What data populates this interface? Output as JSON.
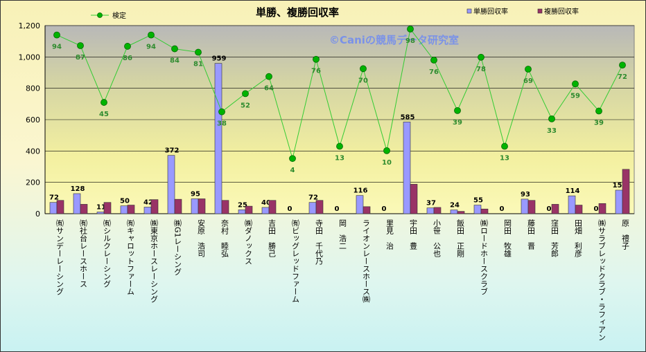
{
  "chart_data": {
    "type": "bar",
    "title": "単勝、複勝回収率",
    "watermark": "©Caniの競馬データ研究室",
    "ylim": [
      0,
      1200
    ],
    "yticks": [
      "0",
      "200",
      "400",
      "600",
      "800",
      "1,000",
      "1,200"
    ],
    "grid": true,
    "legend_placement": "top",
    "categories": [
      "㈲サンデーレーシング",
      "㈲社台レースホース",
      "㈲シルクレーシング",
      "㈲キャロットファーム",
      "㈱東京ホースレーシング",
      "㈱G1レーシング",
      "安原　浩司",
      "奈村　睦弘",
      "㈱ダノックス",
      "吉田　勝己",
      "㈲ビッグレッドファーム",
      "寺田　千代乃",
      "岡　浩二",
      "ライオンレースホース㈱",
      "里見　治",
      "宇田　豊",
      "小笹　公也",
      "飯田　正剛",
      "㈱ロードホースクラブ",
      "岡田　牧雄",
      "藤田　晋",
      "窪田　芳郎",
      "田畑　利彦",
      "㈱サラブレッドクラブ・ラフィアン",
      "原　禮子"
    ],
    "series": [
      {
        "name": "単勝回収率",
        "kind": "bar",
        "color": "#9999ff",
        "values": [
          72,
          128,
          11,
          50,
          42,
          372,
          95,
          959,
          25,
          40,
          0,
          72,
          0,
          116,
          0,
          585,
          37,
          24,
          55,
          0,
          93,
          0,
          114,
          0,
          150
        ],
        "labels": [
          "72",
          "128",
          "11",
          "50",
          "42",
          "372",
          "95",
          "959",
          "25",
          "40",
          "0",
          "72",
          "0",
          "116",
          "0",
          "585",
          "37",
          "24",
          "55",
          "0",
          "93",
          "0",
          "114",
          "0",
          "150"
        ]
      },
      {
        "name": "複勝回収率",
        "kind": "bar",
        "color": "#993366",
        "values": [
          85,
          60,
          72,
          55,
          90,
          92,
          95,
          85,
          48,
          85,
          0,
          85,
          0,
          45,
          0,
          188,
          40,
          15,
          30,
          0,
          85,
          60,
          55,
          65,
          283
        ]
      },
      {
        "name": "検定",
        "kind": "line",
        "color": "#00b300",
        "values": [
          1140,
          1072,
          710,
          1068,
          1140,
          1052,
          1030,
          650,
          766,
          875,
          352,
          985,
          430,
          925,
          402,
          1178,
          980,
          658,
          998,
          430,
          922,
          605,
          828,
          655,
          948
        ],
        "labels": [
          "94",
          "87",
          "45",
          "86",
          "94",
          "84",
          "81",
          "38",
          "52",
          "64",
          "4",
          "76",
          "13",
          "70",
          "10",
          "98",
          "76",
          "39",
          "78",
          "13",
          "69",
          "33",
          "59",
          "39",
          "72"
        ]
      }
    ]
  }
}
